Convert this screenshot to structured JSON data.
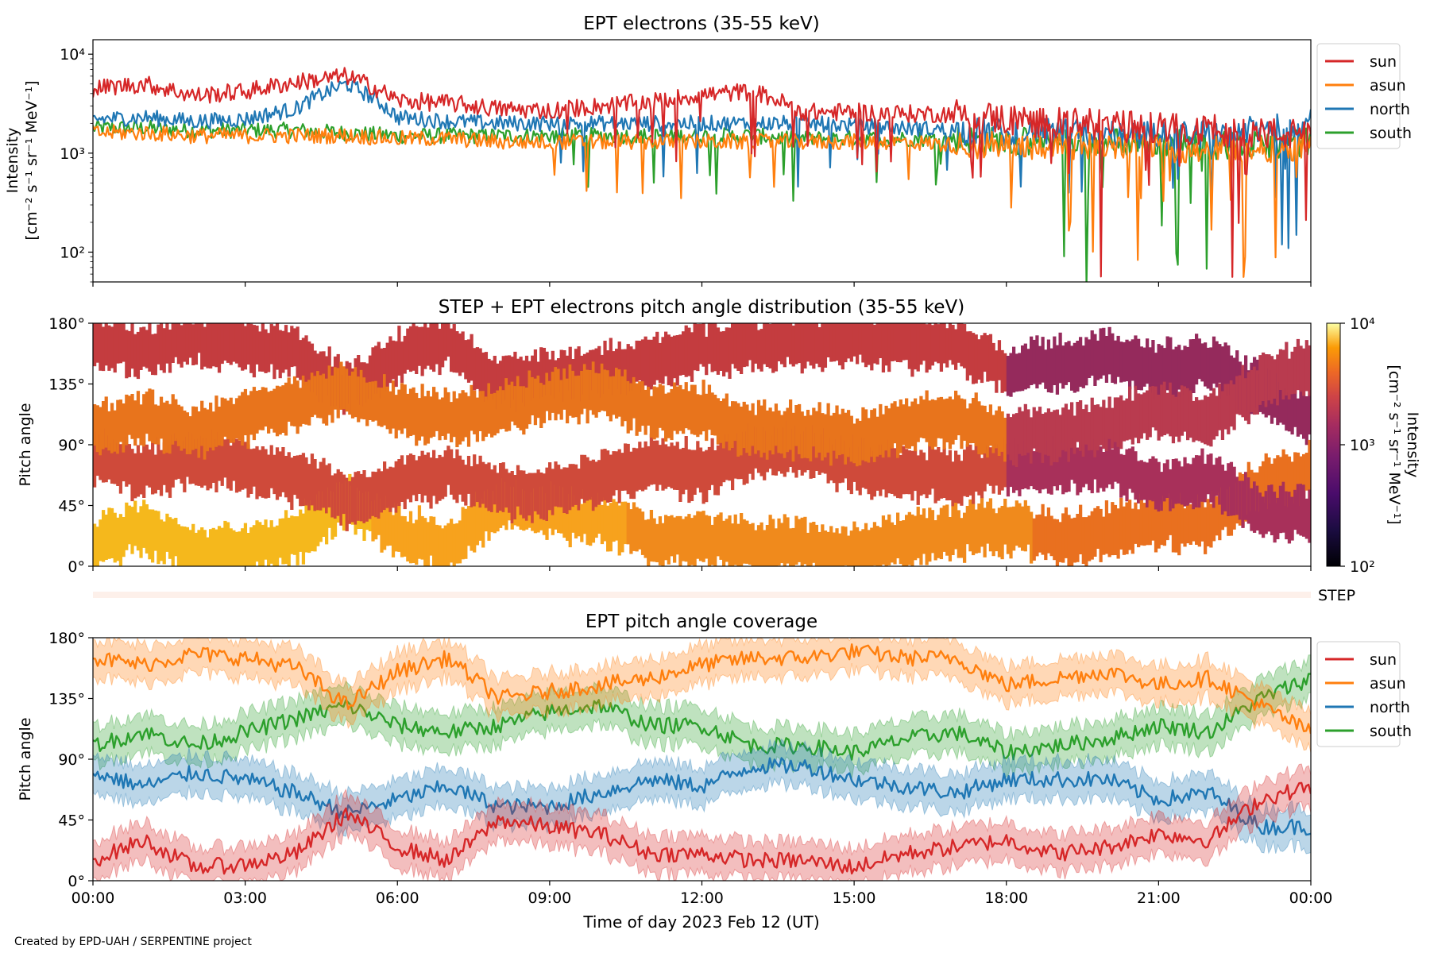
{
  "footer_credit": "Created by EPD-UAH / SERPENTINE project",
  "x_axis": {
    "label": "Time of day 2023 Feb 12 (UT)",
    "tick_labels": [
      "00:00",
      "03:00",
      "06:00",
      "09:00",
      "12:00",
      "15:00",
      "18:00",
      "21:00",
      "00:00"
    ]
  },
  "colors": {
    "sun": "#d62728",
    "asun": "#ff7f0e",
    "north": "#1f77b4",
    "south": "#2ca02c"
  },
  "chart_data": [
    {
      "type": "line",
      "title": "EPT electrons (35-55 keV)",
      "ylabel_line1": "Intensity",
      "ylabel_line2": "[cm⁻² s⁻¹ sr⁻¹ MeV⁻¹]",
      "yscale": "log",
      "ylim": [
        50,
        14000
      ],
      "y_tick_labels": [
        "10²",
        "10³",
        "10⁴"
      ],
      "xlim_hours": [
        0,
        24
      ],
      "x": [
        0,
        1,
        2,
        3,
        4,
        5,
        6,
        7,
        8,
        9,
        10,
        11,
        12,
        13,
        14,
        15,
        16,
        17,
        18,
        19,
        20,
        21,
        22,
        23,
        24
      ],
      "series": [
        {
          "name": "sun",
          "values": [
            4500,
            5000,
            3800,
            4200,
            5200,
            6000,
            3400,
            3200,
            2800,
            2700,
            3000,
            3300,
            3900,
            4200,
            2600,
            2600,
            2500,
            2500,
            2200,
            2000,
            1900,
            1800,
            1700,
            1600,
            1500
          ]
        },
        {
          "name": "asun",
          "values": [
            1600,
            1600,
            1500,
            1500,
            1500,
            1500,
            1400,
            1400,
            1300,
            1300,
            1300,
            1300,
            1300,
            1300,
            1300,
            1300,
            1300,
            1200,
            1200,
            1200,
            1200,
            1100,
            1100,
            1100,
            1200
          ]
        },
        {
          "name": "north",
          "values": [
            2200,
            2300,
            2100,
            2200,
            2800,
            5000,
            2300,
            2100,
            2000,
            2000,
            2000,
            2000,
            2000,
            2000,
            2000,
            1900,
            1800,
            1700,
            1600,
            1600,
            1600,
            1500,
            1600,
            1700,
            2000
          ]
        },
        {
          "name": "south",
          "values": [
            1800,
            1800,
            1700,
            1700,
            1700,
            1600,
            1500,
            1500,
            1500,
            1500,
            1500,
            1500,
            1500,
            1500,
            1400,
            1400,
            1400,
            1400,
            1300,
            1300,
            1300,
            1300,
            1200,
            1200,
            1300
          ]
        }
      ],
      "legend": [
        "sun",
        "asun",
        "north",
        "south"
      ],
      "legend_position": "outside right"
    },
    {
      "type": "heatmap",
      "title": "STEP + EPT electrons pitch angle distribution (35-55 keV)",
      "ylabel": "Pitch angle",
      "ylim": [
        0,
        180
      ],
      "y_tick_labels": [
        "0°",
        "45°",
        "90°",
        "135°",
        "180°"
      ],
      "colorbar": {
        "scale": "log",
        "range": [
          100,
          10000
        ],
        "tick_labels": [
          "10²",
          "10³",
          "10⁴"
        ],
        "label_line1": "Intensity",
        "label_line2": "[cm⁻² s⁻¹ sr⁻¹ MeV⁻¹]",
        "colormap": "inferno"
      },
      "step_label": "STEP"
    },
    {
      "type": "line",
      "title": "EPT pitch angle coverage",
      "ylabel": "Pitch angle",
      "ylim": [
        0,
        180
      ],
      "y_tick_labels": [
        "0°",
        "45°",
        "90°",
        "135°",
        "180°"
      ],
      "x": [
        0,
        1,
        2,
        3,
        4,
        5,
        6,
        7,
        8,
        9,
        10,
        11,
        12,
        13,
        14,
        15,
        16,
        17,
        18,
        19,
        20,
        21,
        22,
        23,
        24
      ],
      "band_halfwidth_deg": 14,
      "series": [
        {
          "name": "sun",
          "values": [
            15,
            30,
            10,
            12,
            20,
            50,
            25,
            15,
            45,
            40,
            35,
            20,
            20,
            15,
            15,
            10,
            20,
            25,
            30,
            20,
            25,
            35,
            30,
            60,
            70
          ]
        },
        {
          "name": "asun",
          "values": [
            165,
            160,
            168,
            165,
            158,
            130,
            155,
            165,
            135,
            140,
            145,
            150,
            160,
            165,
            165,
            170,
            165,
            165,
            145,
            150,
            155,
            145,
            150,
            130,
            110
          ]
        },
        {
          "name": "north",
          "values": [
            80,
            70,
            80,
            75,
            65,
            50,
            60,
            70,
            55,
            55,
            65,
            75,
            70,
            85,
            85,
            75,
            70,
            65,
            75,
            75,
            75,
            60,
            65,
            40,
            40
          ]
        },
        {
          "name": "south",
          "values": [
            100,
            110,
            100,
            110,
            120,
            130,
            115,
            110,
            115,
            125,
            130,
            115,
            115,
            100,
            100,
            95,
            105,
            110,
            95,
            100,
            105,
            115,
            110,
            135,
            150
          ]
        }
      ],
      "legend": [
        "sun",
        "asun",
        "north",
        "south"
      ],
      "legend_position": "outside right"
    }
  ]
}
